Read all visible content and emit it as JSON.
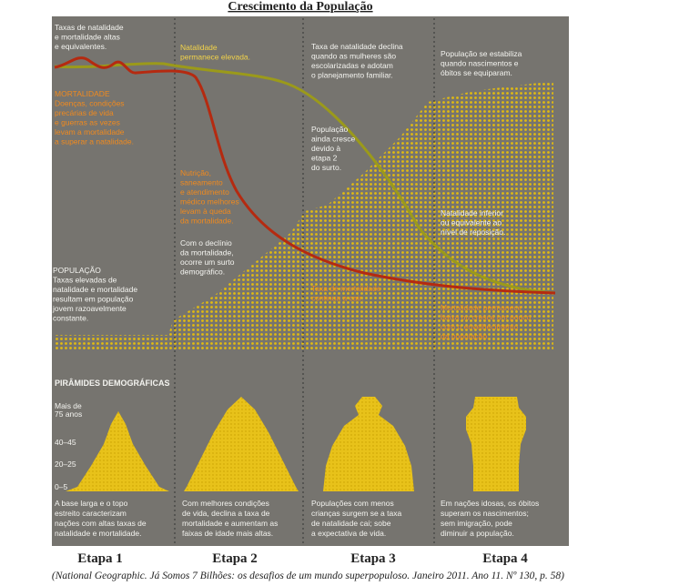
{
  "header": {
    "title": "Crescimento da População"
  },
  "annotations": [
    {
      "lines": [
        "Taxas de natalidade",
        "e mortalidade altas",
        "e equivalentes."
      ]
    },
    {
      "lines": [
        "MORTALIDADE",
        "Doenças, condições",
        "precárias de vida",
        "e guerras as vezes",
        "levam a mortalidade",
        "a superar a natalidade."
      ]
    },
    {
      "lines": [
        "Natalidade",
        "permanece elevada."
      ]
    },
    {
      "lines": [
        "Nutrição,",
        "saneamento",
        "e atendimento",
        "médico melhores",
        "levam à queda",
        "da mortalidade."
      ]
    },
    {
      "lines": [
        "Com o declínio",
        "da mortalidade,",
        "ocorre um surto",
        "demográfico."
      ]
    },
    {
      "lines": [
        "POPULAÇÃO",
        "Taxas elevadas de",
        "natalidade e mortalidade",
        "resultam em população",
        "jovem razoavelmente",
        "constante."
      ]
    },
    {
      "lines": [
        "Taxa de natalidade declina",
        "quando as mulheres são",
        "escolarizadas e adotam",
        "o planejamento familiar."
      ]
    },
    {
      "lines": [
        "População",
        "ainda cresce",
        "devido à",
        "etapa 2",
        "do surto."
      ]
    },
    {
      "lines": [
        "Taxa de mortalidade",
        "continua a cair."
      ]
    },
    {
      "lines": [
        "População se estabiliza",
        "quando nascimentos e",
        "óbitos se equiparam."
      ]
    },
    {
      "lines": [
        "Natalidade inferior",
        "ou equivalente ao",
        "nível de reposição."
      ]
    },
    {
      "lines": [
        "Mortalidade permanece",
        "baixa ou cresce um pouco",
        "com o envelhecimento",
        "da população."
      ]
    }
  ],
  "pyramids": {
    "title": "PIRÂMIDES DEMOGRÁFICAS",
    "age_labels": [
      [
        "Mais de",
        "75 anos"
      ],
      [
        "40–45"
      ],
      [
        "20–25"
      ],
      [
        "0–5"
      ]
    ],
    "descriptions": [
      [
        "A base larga e o topo",
        "estreito caracterizam",
        "nações com altas taxas de",
        "natalidade e mortalidade."
      ],
      [
        "Com melhores condições",
        "de vida, declina a taxa de",
        "mortalidade e aumentam as",
        "faixas de idade mais altas."
      ],
      [
        "Populações com menos",
        "crianças surgem se a taxa",
        "de natalidade cai; sobe",
        "a expectativa de vida."
      ],
      [
        "Em nações idosas, os óbitos",
        "superam os nascimentos;",
        "sem imigração, pode",
        "diminuir a população."
      ]
    ]
  },
  "stages": [
    "Etapa 1",
    "Etapa 2",
    "Etapa 3",
    "Etapa 4"
  ],
  "caption": "(National Geographic. Já Somos 7 Bilhões: os desafios de um mundo superpopuloso. Janeiro 2011. Ano 11. Nº 130, p. 58)"
}
